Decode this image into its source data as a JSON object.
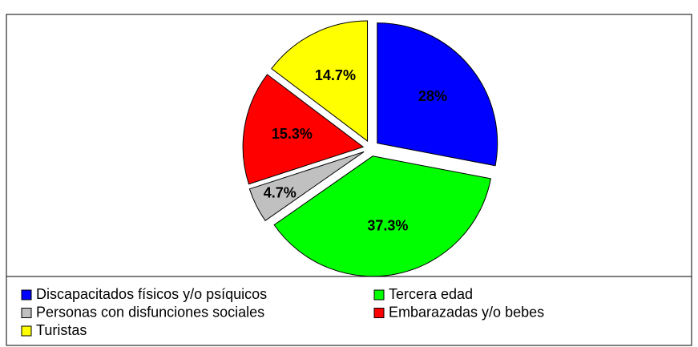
{
  "chart_data": {
    "type": "pie",
    "categories": [
      "Discapacitados físicos y/o psíquicos",
      "Tercera edad",
      "Personas con disfunciones sociales",
      "Embarazadas y/o bebes",
      "Turistas"
    ],
    "values": [
      28,
      37.3,
      4.7,
      15.3,
      14.7
    ],
    "value_labels": [
      "28%",
      "37.3%",
      "4.7%",
      "15.3%",
      "14.7%"
    ],
    "colors": [
      "#0000ff",
      "#00ff00",
      "#c0c0c0",
      "#ff0000",
      "#ffff00"
    ],
    "legend": "bottom"
  }
}
